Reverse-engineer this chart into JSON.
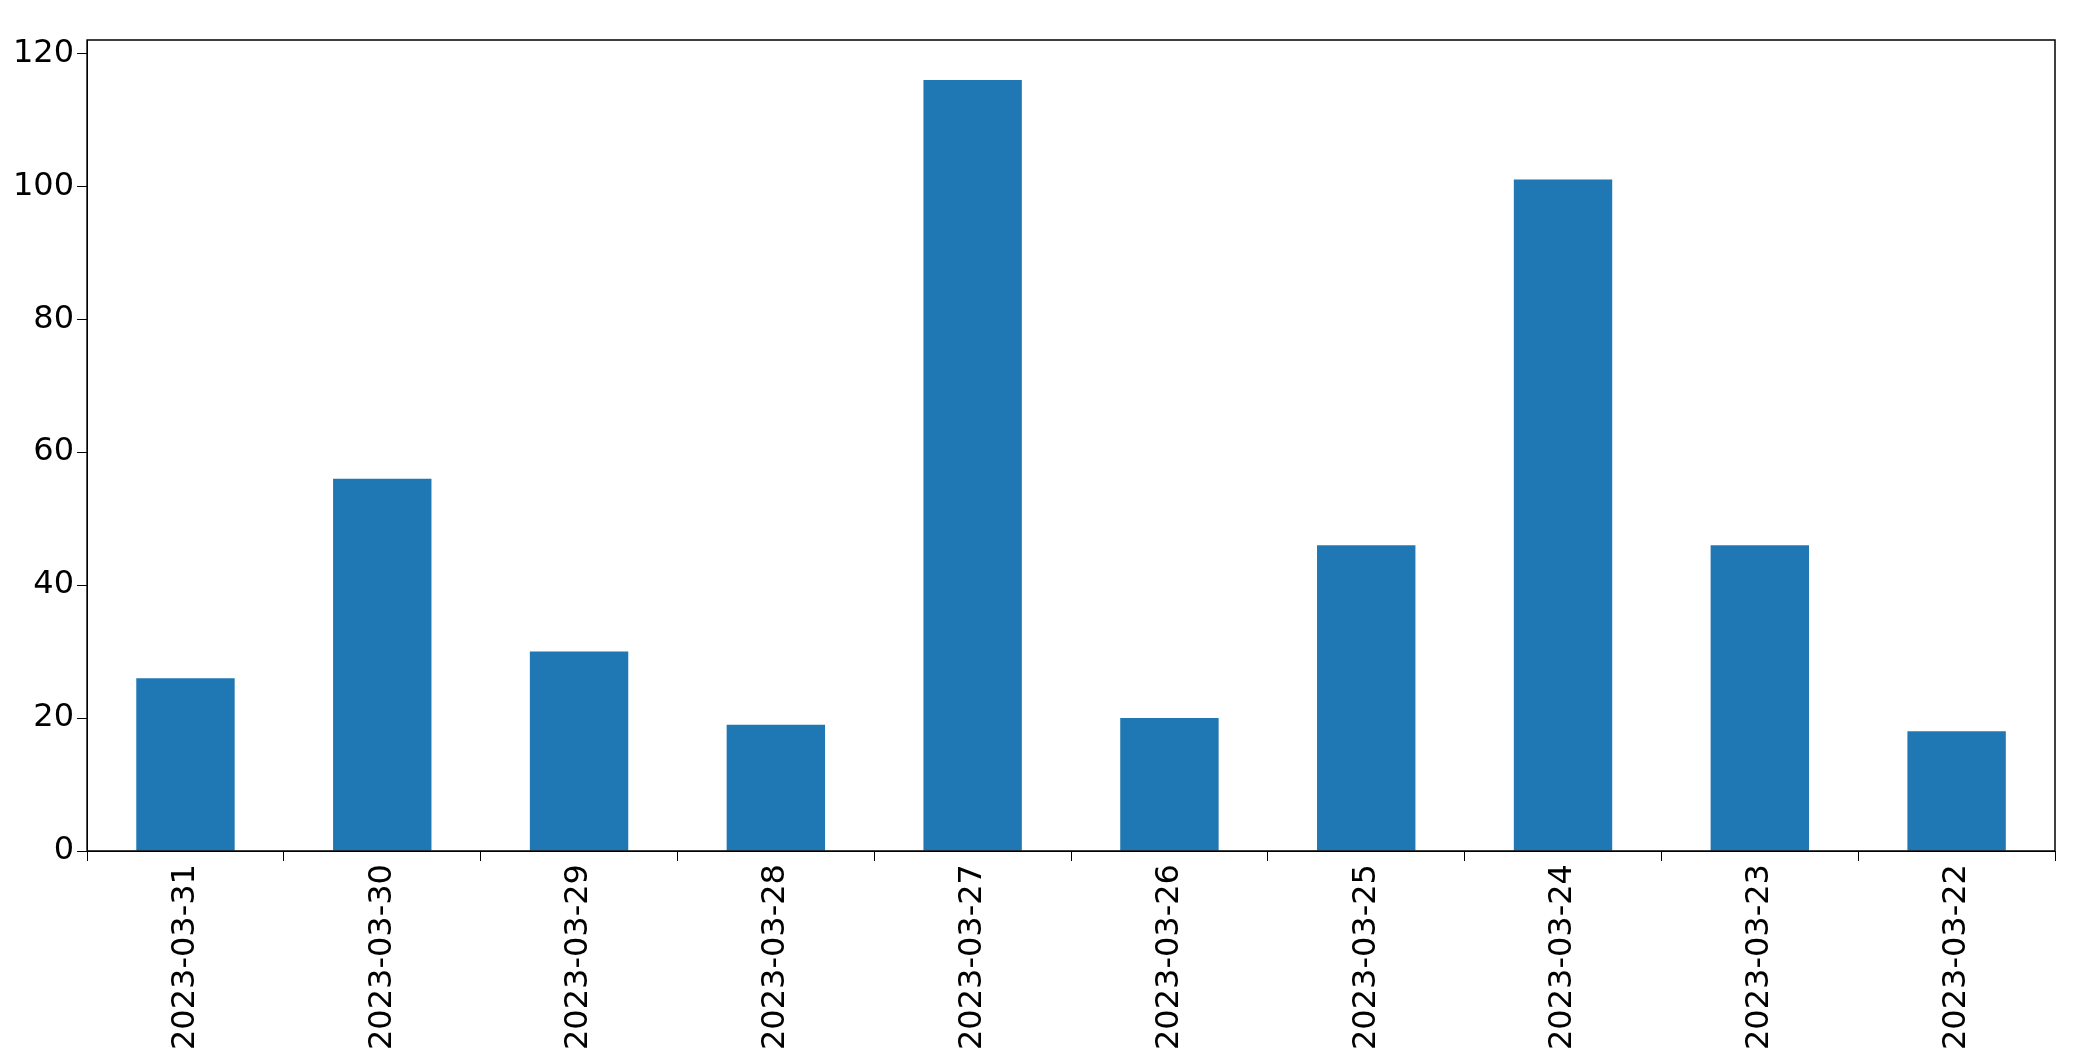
{
  "chart_data": {
    "type": "bar",
    "categories": [
      "2023-03-31",
      "2023-03-30",
      "2023-03-29",
      "2023-03-28",
      "2023-03-27",
      "2023-03-26",
      "2023-03-25",
      "2023-03-24",
      "2023-03-23",
      "2023-03-22"
    ],
    "values": [
      26,
      56,
      30,
      19,
      116,
      20,
      46,
      101,
      46,
      18
    ],
    "color": "#1f77b4",
    "ylim": [
      0,
      122
    ],
    "yticks": [
      0,
      20,
      40,
      60,
      80,
      100,
      120
    ],
    "grid": false,
    "legend": false
  }
}
